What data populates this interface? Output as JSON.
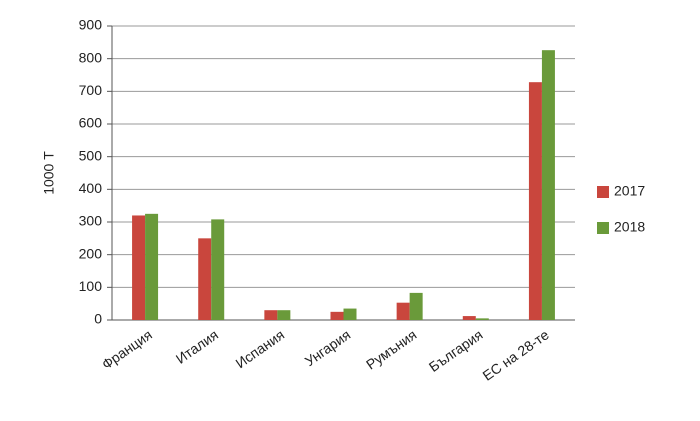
{
  "chart_data": {
    "type": "bar",
    "y_label": "1000 Т",
    "categories": [
      "Франция",
      "Италия",
      "Испания",
      "Унгария",
      "Румъния",
      "България",
      "ЕС на 28-те"
    ],
    "series": [
      {
        "name": "2017",
        "color": "#c9463d",
        "values": [
          320,
          250,
          30,
          25,
          53,
          12,
          728
        ]
      },
      {
        "name": "2018",
        "color": "#6a9a3a",
        "values": [
          325,
          308,
          30,
          35,
          83,
          5,
          826
        ]
      }
    ],
    "ylim": [
      0,
      900
    ],
    "yticks": [
      0,
      100,
      200,
      300,
      400,
      500,
      600,
      700,
      800,
      900
    ],
    "grid": true,
    "legend": "right"
  }
}
